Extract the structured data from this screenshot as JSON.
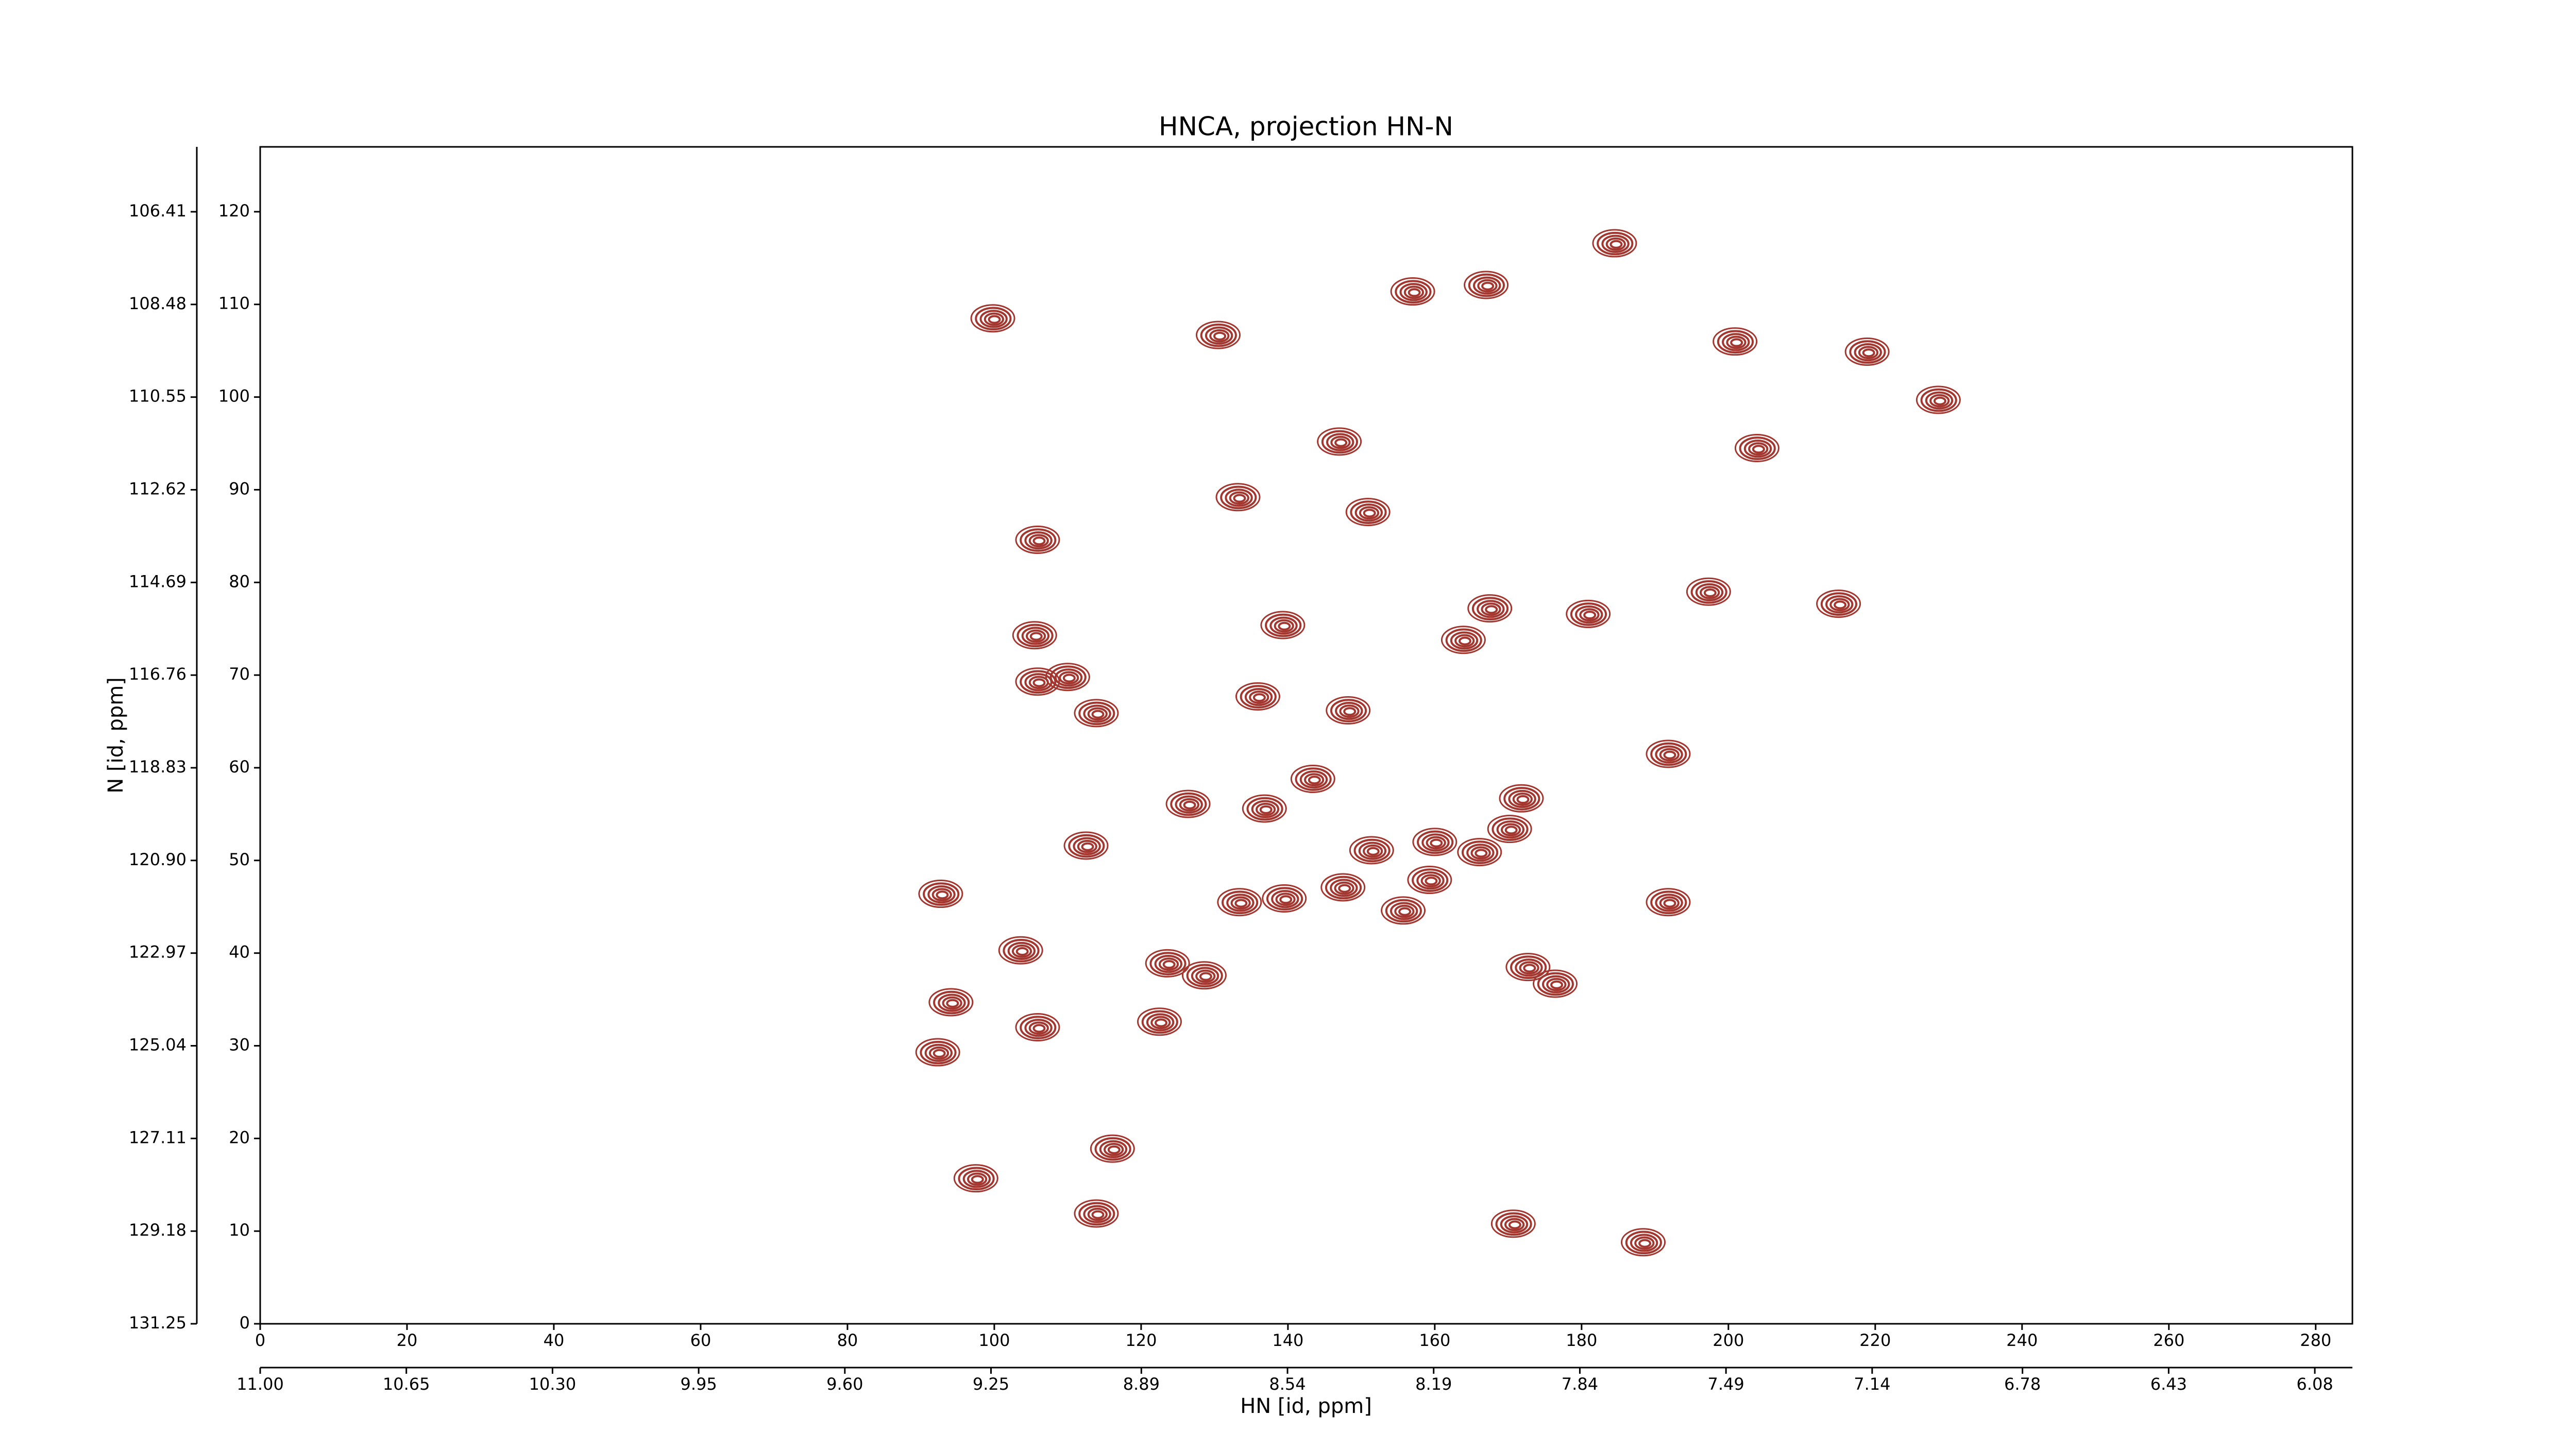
{
  "chart_data": {
    "type": "contour",
    "title": "HNCA, projection HN-N",
    "x_label": "HN [id, ppm]",
    "y_label": "N [id, ppm]",
    "color": "#a3362e",
    "xlim": [
      0,
      285
    ],
    "xticks": [
      0,
      20,
      40,
      60,
      80,
      100,
      120,
      140,
      160,
      180,
      200,
      220,
      240,
      260,
      280
    ],
    "ylim": [
      0,
      127
    ],
    "yticks": [
      0,
      10,
      20,
      30,
      40,
      50,
      60,
      70,
      80,
      90,
      100,
      110,
      120
    ],
    "x2lim": [
      11,
      5.99
    ],
    "x2ticks": [
      {
        "value": 11,
        "label": "11.00"
      },
      10.65,
      {
        "value": 10.3,
        "label": "10.30"
      },
      9.95,
      {
        "value": 9.6,
        "label": "9.60"
      },
      9.25,
      8.89,
      8.54,
      8.19,
      7.84,
      7.49,
      7.14,
      6.78,
      6.43,
      6.08
    ],
    "y2lim": [
      131.25,
      104.96
    ],
    "y2ticks": [
      131.25,
      129.18,
      127.11,
      125.04,
      122.97,
      {
        "value": 120.9,
        "label": "120.90"
      },
      118.83,
      116.76,
      114.69,
      112.62,
      110.55,
      108.48,
      106.41
    ],
    "x": [
      99.8,
      130.5,
      184.5,
      157.0,
      167.0,
      200.9,
      218.9,
      228.6,
      147.0,
      203.9,
      133.2,
      150.9,
      105.9,
      197.3,
      215.0,
      180.9,
      167.5,
      163.9,
      139.3,
      105.5,
      105.9,
      110.0,
      113.9,
      135.9,
      148.2,
      191.8,
      143.4,
      136.8,
      126.4,
      171.8,
      170.2,
      166.1,
      160.0,
      151.4,
      112.5,
      147.5,
      159.3,
      155.7,
      133.4,
      139.5,
      92.7,
      191.8,
      103.6,
      123.6,
      128.6,
      172.7,
      176.4,
      94.1,
      105.9,
      122.5,
      92.3,
      116.1,
      97.5,
      113.9,
      170.7,
      188.4
    ],
    "values": [
      108.5,
      106.7,
      116.6,
      111.4,
      112.1,
      106.0,
      104.9,
      99.7,
      95.2,
      94.5,
      89.2,
      87.6,
      84.6,
      79.0,
      77.7,
      76.6,
      77.2,
      73.8,
      75.4,
      74.3,
      69.3,
      69.8,
      65.9,
      67.7,
      66.2,
      61.5,
      58.8,
      55.6,
      56.1,
      56.7,
      53.4,
      50.9,
      52.0,
      51.1,
      51.6,
      47.1,
      47.9,
      44.6,
      45.5,
      45.9,
      46.4,
      45.5,
      40.3,
      38.9,
      37.6,
      38.5,
      36.7,
      34.7,
      32.0,
      32.6,
      29.3,
      18.9,
      15.7,
      11.9,
      10.8,
      8.8
    ]
  }
}
